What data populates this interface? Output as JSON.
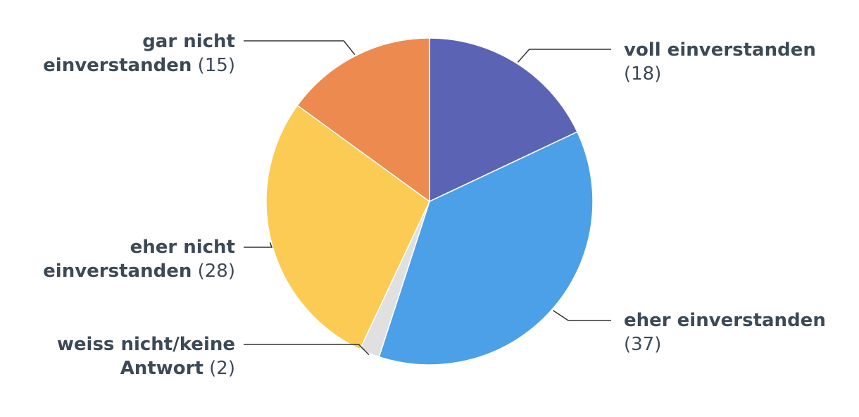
{
  "chart_data": {
    "type": "pie",
    "title": "",
    "slices": [
      {
        "label": "voll einverstanden",
        "value": 18,
        "value_text": "(18)",
        "color": "#5b63b5"
      },
      {
        "label": "eher einverstanden",
        "value": 37,
        "value_text": "(37)",
        "color": "#4ba0e8"
      },
      {
        "label": "weiss nicht/keine Antwort",
        "value": 2,
        "value_text": "(2)",
        "color": "#e0e0e0"
      },
      {
        "label": "eher nicht einverstanden",
        "value": 28,
        "value_text": "(28)",
        "color": "#fccb54"
      },
      {
        "label": "gar nicht einverstanden",
        "value": 15,
        "value_text": "(15)",
        "color": "#ed8a4f"
      }
    ],
    "label_lines": [
      [
        "voll einverstanden"
      ],
      [
        "eher einverstanden"
      ],
      [
        "weiss nicht/keine",
        "Antwort"
      ],
      [
        "eher nicht",
        "einverstanden"
      ],
      [
        "gar nicht",
        "einverstanden"
      ]
    ],
    "connector_color": "#333333",
    "start_angle_deg": 0,
    "direction": "clockwise"
  }
}
